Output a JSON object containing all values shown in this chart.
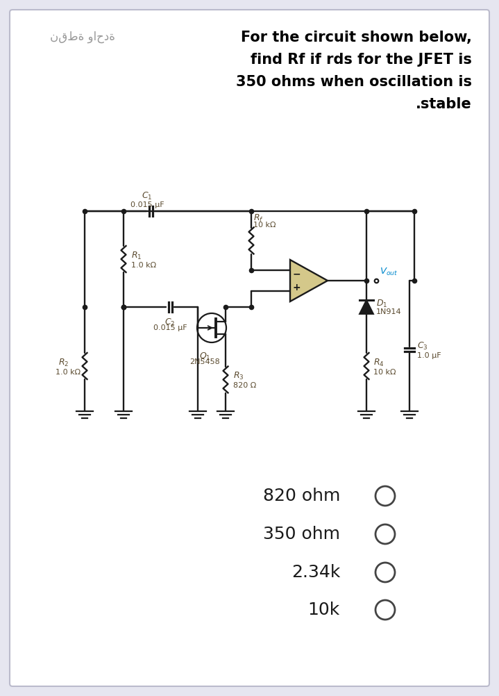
{
  "bg_color": "#e6e6f0",
  "panel_color": "#ffffff",
  "title_arabic": "نقطة واحدة",
  "title_line1": "For the circuit shown below,",
  "title_line2": "find Rf if rds for the JFET is",
  "title_line3": "350 ohms when oscillation is",
  "title_line4": ".stable",
  "choices": [
    "820 ohm",
    "350 ohm",
    "2.34k",
    "10k"
  ],
  "circuit_color": "#1a1a1a",
  "label_color": "#5a4a2e",
  "vout_color": "#0088cc",
  "opamp_fill": "#d4c88a",
  "title_fontsize": 15,
  "arabic_fontsize": 12,
  "choice_fontsize": 18,
  "label_fontsize": 9,
  "small_label_fontsize": 8
}
